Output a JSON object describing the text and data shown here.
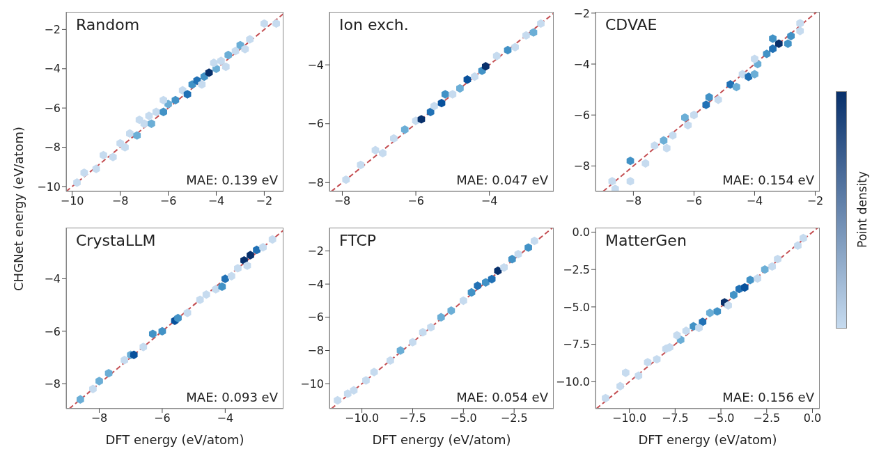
{
  "chart_data": [
    {
      "type": "scatter",
      "title": "Random",
      "ylabel": "CHGNet energy (eV/atom)",
      "annotations": [
        "MAE: 0.139 eV"
      ],
      "xlim": [
        -10.25,
        -1.2
      ],
      "ylim": [
        -10.25,
        -1.1
      ],
      "xticks": [
        -10,
        -8,
        -6,
        -4,
        -2
      ],
      "yticks": [
        -10,
        -8,
        -6,
        -4,
        -2
      ],
      "series": [
        {
          "type": "scatter",
          "x": [
            -9.8,
            -9.5,
            -9.0,
            -8.7,
            -8.3,
            -8.0,
            -7.8,
            -7.6,
            -7.3,
            -7.0,
            -7.2,
            -6.7,
            -6.5,
            -6.8,
            -6.2,
            -6.0,
            -6.2,
            -5.7,
            -5.4,
            -5.2,
            -5.0,
            -4.8,
            -4.6,
            -4.5,
            -4.3,
            -4.0,
            -4.1,
            -3.8,
            -3.6,
            -3.5,
            -3.2,
            -3.0,
            -2.8,
            -2.6,
            -2.0,
            -1.5
          ],
          "values": [
            -9.8,
            -9.3,
            -9.1,
            -8.4,
            -8.5,
            -7.8,
            -8.0,
            -7.3,
            -7.4,
            -6.8,
            -6.6,
            -6.8,
            -6.2,
            -6.4,
            -6.2,
            -5.8,
            -5.6,
            -5.6,
            -5.1,
            -5.3,
            -4.8,
            -4.6,
            -4.8,
            -4.4,
            -4.2,
            -4.0,
            -3.7,
            -3.6,
            -3.9,
            -3.3,
            -3.1,
            -2.8,
            -3.0,
            -2.5,
            -1.7,
            -1.7
          ],
          "colors": [
            "#c6dbef",
            "#c6dbef",
            "#c6dbef",
            "#c6dbef",
            "#c6dbef",
            "#c6dbef",
            "#c6dbef",
            "#c6dbef",
            "#6baed6",
            "#c6dbef",
            "#c6dbef",
            "#6baed6",
            "#c6dbef",
            "#c6dbef",
            "#4292c6",
            "#6baed6",
            "#c6dbef",
            "#4292c6",
            "#c6dbef",
            "#2171b5",
            "#4292c6",
            "#2171b5",
            "#c6dbef",
            "#4292c6",
            "#08306b",
            "#6baed6",
            "#c6dbef",
            "#c6dbef",
            "#c6dbef",
            "#6baed6",
            "#c6dbef",
            "#6baed6",
            "#c6dbef",
            "#c6dbef",
            "#c6dbef",
            "#c6dbef"
          ]
        },
        {
          "type": "line",
          "color": "#c44e52",
          "line_style": "dashed",
          "x": [
            -10.25,
            -1.2
          ],
          "values": [
            -10.25,
            -1.2
          ]
        }
      ]
    },
    {
      "type": "scatter",
      "title": "Ion exch.",
      "annotations": [
        "MAE: 0.047 eV"
      ],
      "xlim": [
        -8.35,
        -2.25
      ],
      "ylim": [
        -8.3,
        -2.2
      ],
      "xticks": [
        -8,
        -6,
        -4
      ],
      "yticks": [
        -8,
        -6,
        -4
      ],
      "series": [
        {
          "type": "scatter",
          "x": [
            -7.9,
            -7.5,
            -7.1,
            -6.9,
            -6.6,
            -6.3,
            -6.0,
            -5.85,
            -5.6,
            -5.5,
            -5.3,
            -5.2,
            -5.0,
            -4.8,
            -4.6,
            -4.4,
            -4.2,
            -4.1,
            -3.8,
            -3.5,
            -3.3,
            -3.0,
            -2.8,
            -2.6
          ],
          "values": [
            -7.9,
            -7.4,
            -6.9,
            -7.0,
            -6.5,
            -6.2,
            -5.9,
            -5.85,
            -5.6,
            -5.4,
            -5.3,
            -5.0,
            -5.0,
            -4.8,
            -4.5,
            -4.4,
            -4.2,
            -4.05,
            -3.7,
            -3.5,
            -3.4,
            -3.0,
            -2.9,
            -2.6
          ],
          "colors": [
            "#c6dbef",
            "#c6dbef",
            "#c6dbef",
            "#c6dbef",
            "#c6dbef",
            "#6baed6",
            "#c6dbef",
            "#08306b",
            "#2171b5",
            "#c6dbef",
            "#08519c",
            "#4292c6",
            "#c6dbef",
            "#6baed6",
            "#08519c",
            "#c6dbef",
            "#4292c6",
            "#08306b",
            "#c6dbef",
            "#4292c6",
            "#c6dbef",
            "#c6dbef",
            "#6baed6",
            "#c6dbef"
          ]
        },
        {
          "type": "line",
          "color": "#c44e52",
          "line_style": "dashed",
          "x": [
            -8.3,
            -2.25
          ],
          "values": [
            -8.3,
            -2.25
          ]
        }
      ]
    },
    {
      "type": "scatter",
      "title": "CDVAE",
      "clabel": "Point density",
      "annotations": [
        "MAE: 0.154 eV"
      ],
      "xlim": [
        -9.25,
        -1.85
      ],
      "ylim": [
        -9.0,
        -1.95
      ],
      "xticks": [
        -8,
        -6,
        -4,
        -2
      ],
      "yticks": [
        -8,
        -6,
        -4,
        -2
      ],
      "series": [
        {
          "type": "scatter",
          "x": [
            -8.7,
            -8.6,
            -8.1,
            -8.1,
            -7.6,
            -7.3,
            -7.0,
            -6.9,
            -6.7,
            -6.3,
            -6.2,
            -6.0,
            -5.6,
            -5.5,
            -5.2,
            -4.8,
            -4.6,
            -4.4,
            -4.2,
            -4.0,
            -3.9,
            -4.0,
            -3.6,
            -3.4,
            -3.2,
            -3.4,
            -2.9,
            -2.8,
            -2.5,
            -2.5
          ],
          "values": [
            -8.6,
            -8.9,
            -8.6,
            -7.8,
            -7.9,
            -7.2,
            -7.0,
            -7.3,
            -6.8,
            -6.1,
            -6.4,
            -6.0,
            -5.6,
            -5.3,
            -5.4,
            -4.8,
            -4.9,
            -4.4,
            -4.5,
            -4.4,
            -4.0,
            -3.8,
            -3.6,
            -3.4,
            -3.2,
            -3.0,
            -3.2,
            -2.9,
            -2.4,
            -2.7
          ],
          "colors": [
            "#c6dbef",
            "#c6dbef",
            "#c6dbef",
            "#4292c6",
            "#c6dbef",
            "#c6dbef",
            "#6baed6",
            "#c6dbef",
            "#c6dbef",
            "#6baed6",
            "#c6dbef",
            "#c6dbef",
            "#2171b5",
            "#4292c6",
            "#c6dbef",
            "#2171b5",
            "#6baed6",
            "#c6dbef",
            "#2171b5",
            "#6baed6",
            "#6baed6",
            "#c6dbef",
            "#4292c6",
            "#2171b5",
            "#08306b",
            "#4292c6",
            "#4292c6",
            "#4292c6",
            "#c6dbef",
            "#c6dbef"
          ]
        },
        {
          "type": "line",
          "color": "#c44e52",
          "line_style": "dashed",
          "x": [
            -9.0,
            -1.95
          ],
          "values": [
            -9.0,
            -1.95
          ]
        }
      ]
    },
    {
      "type": "scatter",
      "title": "CrystaLLM",
      "xlabel": "DFT energy (eV/atom)",
      "annotations": [
        "MAE: 0.093 eV"
      ],
      "xlim": [
        -9.05,
        -2.15
      ],
      "ylim": [
        -8.95,
        -2.05
      ],
      "xticks": [
        -8,
        -6,
        -4
      ],
      "yticks": [
        -8,
        -6,
        -4
      ],
      "series": [
        {
          "type": "scatter",
          "x": [
            -8.6,
            -8.2,
            -8.0,
            -7.7,
            -7.2,
            -7.0,
            -6.9,
            -6.6,
            -6.3,
            -6.0,
            -5.6,
            -5.5,
            -5.2,
            -4.8,
            -4.6,
            -4.3,
            -4.1,
            -4.0,
            -3.8,
            -3.6,
            -3.4,
            -3.3,
            -3.2,
            -3.0,
            -2.8,
            -2.5
          ],
          "values": [
            -8.6,
            -8.2,
            -7.9,
            -7.6,
            -7.1,
            -6.9,
            -6.9,
            -6.6,
            -6.1,
            -6.0,
            -5.6,
            -5.5,
            -5.3,
            -4.8,
            -4.6,
            -4.4,
            -4.3,
            -4.0,
            -3.9,
            -3.6,
            -3.3,
            -3.5,
            -3.1,
            -2.9,
            -2.8,
            -2.5
          ],
          "colors": [
            "#6baed6",
            "#c6dbef",
            "#6baed6",
            "#6baed6",
            "#c6dbef",
            "#6baed6",
            "#08519c",
            "#c6dbef",
            "#4292c6",
            "#4292c6",
            "#08519c",
            "#4292c6",
            "#c6dbef",
            "#c6dbef",
            "#c6dbef",
            "#c6dbef",
            "#4292c6",
            "#2171b5",
            "#c6dbef",
            "#c6dbef",
            "#08306b",
            "#c6dbef",
            "#08306b",
            "#2171b5",
            "#c6dbef",
            "#c6dbef"
          ]
        },
        {
          "type": "line",
          "color": "#c44e52",
          "line_style": "dashed",
          "x": [
            -8.95,
            -2.15
          ],
          "values": [
            -8.95,
            -2.15
          ]
        }
      ]
    },
    {
      "type": "scatter",
      "title": "FTCP",
      "xlabel": "DFT energy (eV/atom)",
      "annotations": [
        "MAE: 0.054 eV"
      ],
      "xlim": [
        -11.6,
        -0.55
      ],
      "ylim": [
        -11.5,
        -0.6
      ],
      "xticks": [
        {
          "value": -10,
          "label": "−10.0"
        },
        {
          "value": -7.5,
          "label": "−7.5"
        },
        {
          "value": -5,
          "label": "−5.0"
        },
        {
          "value": -2.5,
          "label": "−2.5"
        }
      ],
      "yticks": [
        -10,
        -8,
        -6,
        -4,
        -2
      ],
      "series": [
        {
          "type": "scatter",
          "x": [
            -11.2,
            -10.7,
            -10.4,
            -9.8,
            -9.4,
            -8.6,
            -8.1,
            -7.5,
            -7.0,
            -6.6,
            -6.1,
            -5.6,
            -5.0,
            -4.6,
            -4.3,
            -3.9,
            -3.6,
            -3.3,
            -3.0,
            -2.6,
            -2.3,
            -1.8,
            -1.5
          ],
          "values": [
            -11.0,
            -10.6,
            -10.4,
            -9.8,
            -9.3,
            -8.6,
            -8.0,
            -7.5,
            -6.9,
            -6.6,
            -6.0,
            -5.6,
            -5.0,
            -4.5,
            -4.1,
            -3.9,
            -3.7,
            -3.2,
            -3.0,
            -2.5,
            -2.2,
            -1.8,
            -1.4
          ],
          "colors": [
            "#c6dbef",
            "#c6dbef",
            "#c6dbef",
            "#c6dbef",
            "#c6dbef",
            "#c6dbef",
            "#6baed6",
            "#c6dbef",
            "#c6dbef",
            "#c6dbef",
            "#6baed6",
            "#6baed6",
            "#c6dbef",
            "#4292c6",
            "#2171b5",
            "#4292c6",
            "#2171b5",
            "#08306b",
            "#c6dbef",
            "#4292c6",
            "#c6dbef",
            "#4292c6",
            "#c6dbef"
          ]
        },
        {
          "type": "line",
          "color": "#c44e52",
          "line_style": "dashed",
          "x": [
            -11.5,
            -0.6
          ],
          "values": [
            -11.5,
            -0.6
          ]
        }
      ]
    },
    {
      "type": "scatter",
      "title": "MatterGen",
      "xlabel": "DFT energy (eV/atom)",
      "annotations": [
        "MAE: 0.156 eV"
      ],
      "xlim": [
        -11.85,
        0.4
      ],
      "ylim": [
        -11.8,
        0.3
      ],
      "xticks": [
        {
          "value": -10,
          "label": "−10.0"
        },
        {
          "value": -7.5,
          "label": "−7.5"
        },
        {
          "value": -5,
          "label": "−5.0"
        },
        {
          "value": -2.5,
          "label": "−2.5"
        },
        {
          "value": 0,
          "label": "0.0"
        }
      ],
      "yticks": [
        {
          "value": -10,
          "label": "−10.0"
        },
        {
          "value": -7.5,
          "label": "−7.5"
        },
        {
          "value": -5,
          "label": "−5.0"
        },
        {
          "value": -2.5,
          "label": "−2.5"
        },
        {
          "value": 0,
          "label": "0.0"
        }
      ],
      "series": [
        {
          "type": "scatter",
          "x": [
            -11.3,
            -10.5,
            -10.2,
            -9.5,
            -9.0,
            -8.5,
            -8.0,
            -7.8,
            -7.2,
            -7.4,
            -6.9,
            -6.5,
            -6.0,
            -6.2,
            -5.6,
            -5.2,
            -4.8,
            -4.6,
            -4.3,
            -4.0,
            -3.7,
            -3.4,
            -3.0,
            -2.6,
            -2.2,
            -1.9,
            -0.8,
            -0.5
          ],
          "values": [
            -11.1,
            -10.3,
            -9.4,
            -9.6,
            -8.7,
            -8.5,
            -7.8,
            -7.7,
            -7.2,
            -6.9,
            -6.6,
            -6.3,
            -6.0,
            -6.4,
            -5.4,
            -5.3,
            -4.7,
            -4.9,
            -4.2,
            -3.8,
            -3.7,
            -3.2,
            -3.1,
            -2.5,
            -2.3,
            -1.8,
            -0.9,
            -0.4
          ],
          "colors": [
            "#c6dbef",
            "#c6dbef",
            "#c6dbef",
            "#c6dbef",
            "#c6dbef",
            "#c6dbef",
            "#c6dbef",
            "#c6dbef",
            "#6baed6",
            "#c6dbef",
            "#c6dbef",
            "#4292c6",
            "#2171b5",
            "#c6dbef",
            "#6baed6",
            "#4292c6",
            "#08306b",
            "#c6dbef",
            "#4292c6",
            "#2171b5",
            "#08519c",
            "#4292c6",
            "#c6dbef",
            "#6baed6",
            "#c6dbef",
            "#c6dbef",
            "#c6dbef",
            "#c6dbef"
          ]
        },
        {
          "type": "line",
          "color": "#c44e52",
          "line_style": "dashed",
          "x": [
            -11.8,
            0.3
          ],
          "values": [
            -11.8,
            0.3
          ]
        }
      ]
    }
  ]
}
